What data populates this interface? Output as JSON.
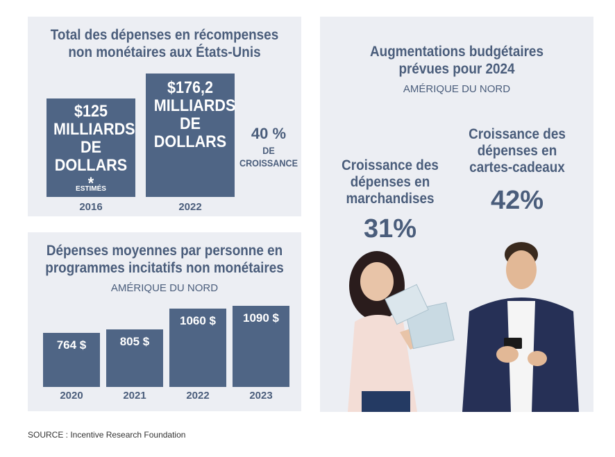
{
  "chart_data": [
    {
      "type": "bar",
      "title": "Total des dépenses en récompenses non monétaires aux États-Unis",
      "categories": [
        "2016",
        "2022"
      ],
      "values": [
        125,
        176.2
      ],
      "bar_labels": [
        {
          "value": "$125",
          "unit": "MILLIARDS DE DOLLARS *",
          "note": "ESTIMÉS"
        },
        {
          "value": "$176,2",
          "unit": "MILLIARDS DE DOLLARS",
          "note": ""
        }
      ],
      "growth_value": "40 %",
      "growth_label": "DE CROISSANCE"
    },
    {
      "type": "bar",
      "title": "Dépenses moyennes par personne en programmes incitatifs non monétaires",
      "subtitle": "AMÉRIQUE DU NORD",
      "categories": [
        "2020",
        "2021",
        "2022",
        "2023"
      ],
      "values": [
        764,
        805,
        1060,
        1090
      ],
      "labels": [
        "764 $",
        "805 $",
        "1060 $",
        "1090 $"
      ]
    },
    {
      "type": "table",
      "title": "Augmentations budgétaires prévues pour 2024",
      "subtitle": "AMÉRIQUE DU NORD",
      "items": [
        {
          "label": "Croissance des dépenses en marchandises",
          "value": "31%"
        },
        {
          "label": "Croissance des dépenses en cartes-cadeaux",
          "value": "42%"
        }
      ]
    }
  ],
  "source": "SOURCE : Incentive Research Foundation",
  "colors": {
    "bar": "#4f6585",
    "panel": "#eceef3",
    "text": "#4a5d7b"
  }
}
